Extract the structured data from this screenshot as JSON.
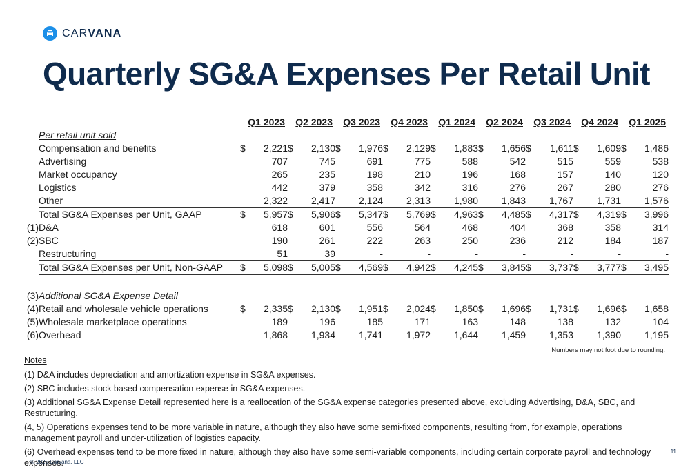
{
  "brand": {
    "name_light": "CAR",
    "name_bold": "VANA",
    "accent_color": "#1c8fe8",
    "title_color": "#0f2b4d",
    "icon": "car-icon"
  },
  "title": "Quarterly SG&A Expenses Per Retail Unit",
  "columns": [
    "Q1 2023",
    "Q2 2023",
    "Q3 2023",
    "Q4 2023",
    "Q1 2024",
    "Q2 2024",
    "Q3 2024",
    "Q4 2024",
    "Q1 2025"
  ],
  "section_label": "Per retail unit sold",
  "rows": [
    {
      "label": "Compensation and benefits",
      "dollar": true,
      "values": [
        "2,221",
        "2,130",
        "1,976",
        "2,129",
        "1,883",
        "1,656",
        "1,611",
        "1,609",
        "1,486"
      ]
    },
    {
      "label": "Advertising",
      "values": [
        "707",
        "745",
        "691",
        "775",
        "588",
        "542",
        "515",
        "559",
        "538"
      ]
    },
    {
      "label": "Market occupancy",
      "values": [
        "265",
        "235",
        "198",
        "210",
        "196",
        "168",
        "157",
        "140",
        "120"
      ]
    },
    {
      "label": "Logistics",
      "values": [
        "442",
        "379",
        "358",
        "342",
        "316",
        "276",
        "267",
        "280",
        "276"
      ]
    },
    {
      "label": "Other",
      "values": [
        "2,322",
        "2,417",
        "2,124",
        "2,313",
        "1,980",
        "1,843",
        "1,767",
        "1,731",
        "1,576"
      ]
    },
    {
      "label": "Total SG&A Expenses per Unit, GAAP",
      "dollar": true,
      "rule_top": true,
      "values": [
        "5,957",
        "5,906",
        "5,347",
        "5,769",
        "4,963",
        "4,485",
        "4,317",
        "4,319",
        "3,996"
      ]
    },
    {
      "footnote": "(1)",
      "label": "D&A",
      "values": [
        "618",
        "601",
        "556",
        "564",
        "468",
        "404",
        "368",
        "358",
        "314"
      ]
    },
    {
      "footnote": "(2)",
      "label": "SBC",
      "values": [
        "190",
        "261",
        "222",
        "263",
        "250",
        "236",
        "212",
        "184",
        "187"
      ]
    },
    {
      "label": "Restructuring",
      "values": [
        "51",
        "39",
        "-",
        "-",
        "-",
        "-",
        "-",
        "-",
        "-"
      ]
    },
    {
      "label": "Total SG&A Expenses per Unit, Non-GAAP",
      "dollar": true,
      "rule_top": true,
      "rule_bottom": true,
      "values": [
        "5,098",
        "5,005",
        "4,569",
        "4,942",
        "4,245",
        "3,845",
        "3,737",
        "3,777",
        "3,495"
      ]
    }
  ],
  "additional": {
    "footnote": "(3)",
    "label": "Additional SG&A Expense Detail",
    "rows": [
      {
        "footnote": "(4)",
        "label": "Retail and wholesale vehicle operations",
        "dollar": true,
        "values": [
          "2,335",
          "2,130",
          "1,951",
          "2,024",
          "1,850",
          "1,696",
          "1,731",
          "1,696",
          "1,658"
        ]
      },
      {
        "footnote": "(5)",
        "label": "Wholesale marketplace operations",
        "values": [
          "189",
          "196",
          "185",
          "171",
          "163",
          "148",
          "138",
          "132",
          "104"
        ]
      },
      {
        "footnote": "(6)",
        "label": "Overhead",
        "values": [
          "1,868",
          "1,934",
          "1,741",
          "1,972",
          "1,644",
          "1,459",
          "1,353",
          "1,390",
          "1,195"
        ]
      }
    ]
  },
  "rounding_note": "Numbers may not foot due to rounding.",
  "notes_heading": "Notes",
  "notes": [
    "(1) D&A includes depreciation and amortization expense in SG&A expenses.",
    "(2) SBC includes stock based compensation expense in SG&A expenses.",
    "(3) Additional SG&A Expense Detail represented here is a reallocation of the SG&A expense categories presented above, excluding Advertising, D&A, SBC, and Restructuring.",
    "(4, 5) Operations expenses tend to be more variable in nature, although they also have some semi-fixed components, resulting from, for example, operations management payroll and under-utilization of logistics capacity.",
    "(6) Overhead expenses tend to be more fixed in nature, although they also have some semi-variable components, including certain corporate payroll and technology expenses."
  ],
  "copyright": "© 2025 Carvana, LLC",
  "page_number": "11"
}
